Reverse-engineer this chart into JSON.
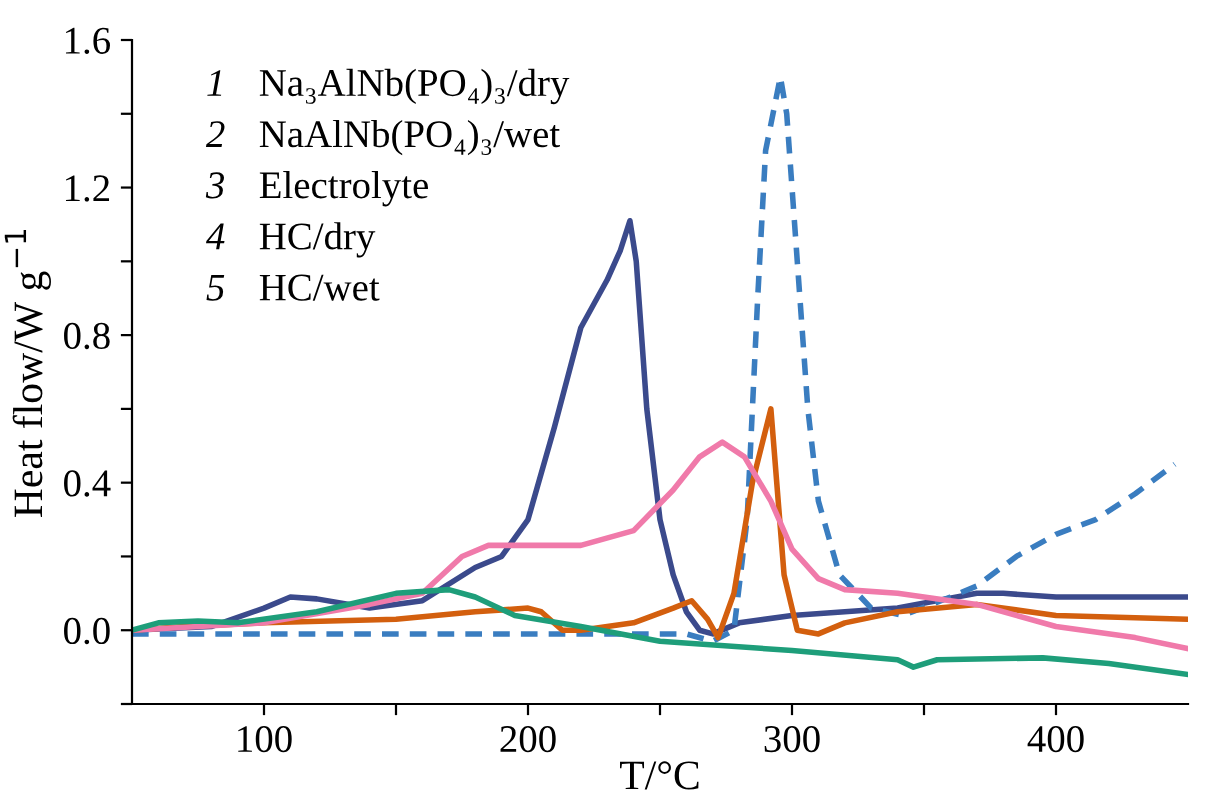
{
  "chart_data": {
    "type": "line",
    "xlabel": "T/°C",
    "ylabel": "Heat flow/W g$^{−1}$",
    "xlim": [
      50,
      450
    ],
    "ylim": [
      -0.2,
      1.6
    ],
    "xticks": [
      100,
      {
        "value": 150,
        "label": null
      },
      200,
      {
        "value": 250,
        "label": null
      },
      300,
      {
        "value": 350,
        "label": null
      },
      400
    ],
    "yticks": [
      {
        "value": -0.2,
        "label": null
      },
      "0.0",
      {
        "value": 0.2,
        "label": null
      },
      0.4,
      {
        "value": 0.6,
        "label": null
      },
      0.8,
      {
        "value": 1.0,
        "label": null
      },
      1.2,
      {
        "value": 1.4,
        "label": null
      },
      1.6
    ],
    "grid": false,
    "marker": "none",
    "annotations": [
      "1 Na₃AlNb(PO₄)₃/dry",
      "2 NaAlNb(PO₄)₃/wet",
      "3 Electrolyte",
      "4 HC/dry",
      "5 HC/wet"
    ],
    "series": [
      {
        "color": "#3b4a8c",
        "line_style": "solid",
        "x": [
          50,
          80,
          100,
          110,
          120,
          140,
          160,
          180,
          190,
          200,
          210,
          220,
          230,
          235,
          238.6,
          241,
          245,
          250,
          255,
          260,
          265,
          270,
          280,
          300,
          340,
          370,
          380,
          400,
          450
        ],
        "values": [
          0,
          0.01,
          0.06,
          0.09,
          0.085,
          0.06,
          0.08,
          0.17,
          0.2,
          0.3,
          0.55,
          0.82,
          0.95,
          1.03,
          1.11,
          1.0,
          0.6,
          0.3,
          0.15,
          0.05,
          0.0,
          -0.01,
          0.02,
          0.04,
          0.06,
          0.1,
          0.1,
          0.09,
          0.09
        ]
      },
      {
        "color": "#3a7dc0",
        "line_style": "dashed",
        "x": [
          50,
          100,
          150,
          200,
          260,
          270,
          278,
          283,
          287,
          290,
          295.6,
          298,
          302,
          306,
          310,
          318,
          330,
          342,
          360,
          370,
          385,
          400,
          415,
          430,
          445
        ],
        "values": [
          -0.01,
          -0.01,
          -0.01,
          -0.01,
          -0.01,
          -0.03,
          0.0,
          0.3,
          0.9,
          1.3,
          1.5,
          1.4,
          1.0,
          0.6,
          0.35,
          0.15,
          0.06,
          0.04,
          0.09,
          0.12,
          0.2,
          0.26,
          0.3,
          0.37,
          0.45
        ]
      },
      {
        "color": "#d35f0e",
        "line_style": "solid",
        "x": [
          50,
          70,
          100,
          150,
          180,
          200,
          205,
          213,
          220,
          240,
          255,
          262,
          268,
          272,
          278,
          285,
          292,
          297,
          302,
          310,
          320,
          340,
          370,
          400,
          450
        ],
        "values": [
          0,
          0.01,
          0.02,
          0.03,
          0.05,
          0.06,
          0.05,
          0.0,
          0.0,
          0.02,
          0.06,
          0.08,
          0.03,
          -0.02,
          0.1,
          0.4,
          0.6,
          0.15,
          0.0,
          -0.01,
          0.02,
          0.05,
          0.07,
          0.04,
          0.03
        ]
      },
      {
        "color": "#f07aaa",
        "line_style": "solid",
        "x": [
          50,
          100,
          140,
          160,
          175,
          185,
          200,
          220,
          240,
          255,
          265,
          273.6,
          282,
          292,
          300,
          310,
          320,
          340,
          370,
          400,
          430,
          450
        ],
        "values": [
          0,
          0.02,
          0.07,
          0.1,
          0.2,
          0.23,
          0.23,
          0.23,
          0.27,
          0.38,
          0.47,
          0.51,
          0.47,
          0.35,
          0.22,
          0.14,
          0.11,
          0.1,
          0.07,
          0.01,
          -0.02,
          -0.05
        ]
      },
      {
        "color": "#1e9e7a",
        "line_style": "solid",
        "x": [
          50,
          60,
          75,
          90,
          120,
          150,
          170,
          180,
          195,
          220,
          250,
          300,
          340,
          346,
          355,
          395,
          420,
          450
        ],
        "values": [
          0,
          0.02,
          0.025,
          0.02,
          0.05,
          0.1,
          0.11,
          0.09,
          0.04,
          0.01,
          -0.03,
          -0.055,
          -0.08,
          -0.1,
          -0.08,
          -0.075,
          -0.09,
          -0.12
        ]
      }
    ]
  }
}
